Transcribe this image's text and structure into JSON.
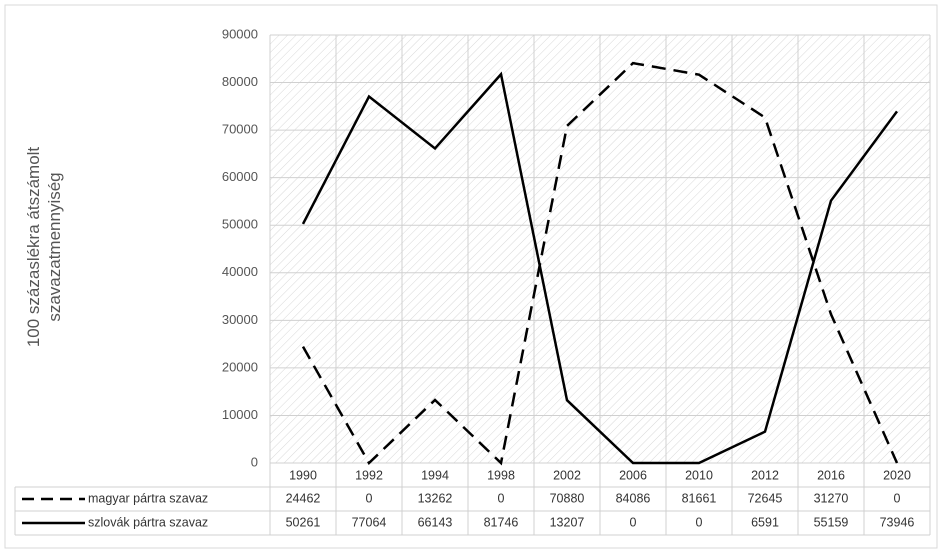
{
  "chart_data": {
    "type": "line",
    "ylabel": "100 százaslékra átszámolt szavazatmennyiség",
    "categories": [
      "1990",
      "1992",
      "1994",
      "1998",
      "2002",
      "2006",
      "2010",
      "2012",
      "2016",
      "2020"
    ],
    "series": [
      {
        "name": "magyar pártra szavaz",
        "color": "#000000",
        "line_style": "dashed",
        "values": [
          24462,
          0,
          13262,
          0,
          70880,
          84086,
          81661,
          72645,
          31270,
          0
        ]
      },
      {
        "name": "szlovák pártra szavaz",
        "color": "#000000",
        "line_style": "solid",
        "values": [
          50261,
          77064,
          66143,
          81746,
          13207,
          0,
          0,
          6591,
          55159,
          73946
        ]
      }
    ],
    "ylim": [
      0,
      90000
    ],
    "yticks": [
      0,
      10000,
      20000,
      30000,
      40000,
      50000,
      60000,
      70000,
      80000,
      90000
    ],
    "grid": true
  }
}
